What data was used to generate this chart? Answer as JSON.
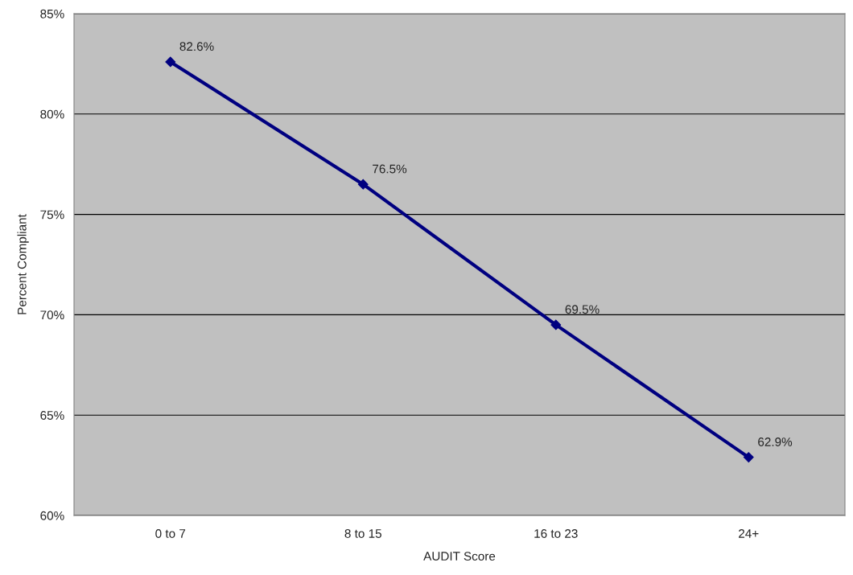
{
  "chart_data": {
    "type": "line",
    "xlabel": "AUDIT Score",
    "ylabel": "Percent Compliant",
    "categories": [
      "0 to 7",
      "8 to 15",
      "16 to 23",
      "24+"
    ],
    "series": [
      {
        "color": "#000080",
        "values": [
          82.6,
          76.5,
          69.5,
          62.9
        ],
        "value_labels": [
          "82.6%",
          "76.5%",
          "69.5%",
          "62.9%"
        ]
      }
    ],
    "ylim": [
      60,
      85
    ],
    "yticks": [
      {
        "value": 60,
        "label": "60%"
      },
      {
        "value": 65,
        "label": "65%"
      },
      {
        "value": 70,
        "label": "70%"
      },
      {
        "value": 75,
        "label": "75%"
      },
      {
        "value": 80,
        "label": "80%"
      },
      {
        "value": 85,
        "label": "85%"
      }
    ],
    "grid": "y",
    "marker": "diamond",
    "line_style": "solid",
    "legend": false
  }
}
